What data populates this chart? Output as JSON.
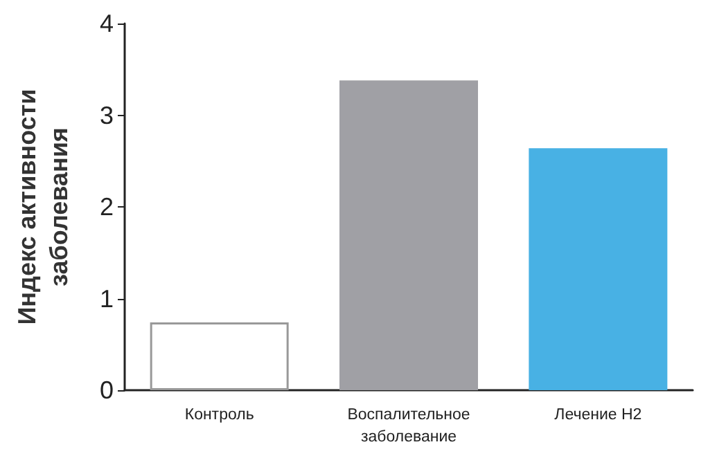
{
  "chart_data": {
    "type": "bar",
    "ylabel": "Индекс активности заболевания",
    "categories": [
      "Контроль",
      "Воспалительное заболевание",
      "Лечение H2"
    ],
    "values": [
      0.74,
      3.38,
      2.64
    ],
    "colors": [
      "#ffffff",
      "#a0a0a5",
      "#48b1e4"
    ],
    "ylim": [
      0,
      4
    ],
    "yticks": [
      0,
      1,
      2,
      3,
      4
    ],
    "grid": false
  }
}
